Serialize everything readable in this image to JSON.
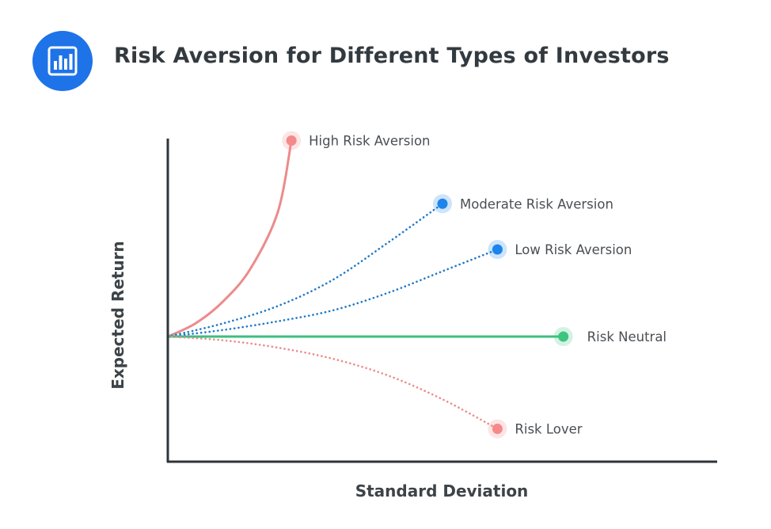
{
  "header": {
    "title": "Risk Aversion for Different Types of Investors",
    "icon": "bar-chart-icon",
    "icon_color": "#1e73e8"
  },
  "chart_data": {
    "type": "line",
    "title": "Risk Aversion for Different Types of Investors",
    "xlabel": "Standard Deviation",
    "ylabel": "Expected Return",
    "xlim": [
      0,
      1
    ],
    "ylim": [
      -1,
      1
    ],
    "grid": false,
    "ticks": false,
    "series": [
      {
        "name": "High Risk Aversion",
        "color": "#ec8b8b",
        "style": "solid",
        "points": [
          [
            0,
            0
          ],
          [
            0.05,
            0.06
          ],
          [
            0.1,
            0.16
          ],
          [
            0.15,
            0.31
          ],
          [
            0.2,
            0.57
          ],
          [
            0.225,
            0.9
          ]
        ]
      },
      {
        "name": "Moderate Risk Aversion",
        "color": "#1f78c8",
        "style": "dotted",
        "points": [
          [
            0,
            0
          ],
          [
            0.1,
            0.06
          ],
          [
            0.2,
            0.14
          ],
          [
            0.3,
            0.26
          ],
          [
            0.4,
            0.43
          ],
          [
            0.5,
            0.61
          ]
        ]
      },
      {
        "name": "Low Risk Aversion",
        "color": "#1f78c8",
        "style": "dotted",
        "points": [
          [
            0,
            0
          ],
          [
            0.1,
            0.03
          ],
          [
            0.2,
            0.07
          ],
          [
            0.3,
            0.12
          ],
          [
            0.4,
            0.2
          ],
          [
            0.5,
            0.3
          ],
          [
            0.6,
            0.4
          ]
        ]
      },
      {
        "name": "Risk Neutral",
        "color": "#3cbf7f",
        "style": "solid",
        "points": [
          [
            0,
            0
          ],
          [
            0.72,
            0
          ]
        ]
      },
      {
        "name": "Risk Lover",
        "color": "#ec8b8b",
        "style": "dotted",
        "points": [
          [
            0,
            0
          ],
          [
            0.1,
            -0.02
          ],
          [
            0.2,
            -0.06
          ],
          [
            0.3,
            -0.12
          ],
          [
            0.4,
            -0.21
          ],
          [
            0.5,
            -0.34
          ],
          [
            0.6,
            -0.5
          ]
        ]
      }
    ],
    "endpoint_colors": [
      "#f48a8a",
      "#1c84ea",
      "#1c84ea",
      "#3cc57f",
      "#f48a8a"
    ],
    "axis_color": "#2f3437"
  }
}
